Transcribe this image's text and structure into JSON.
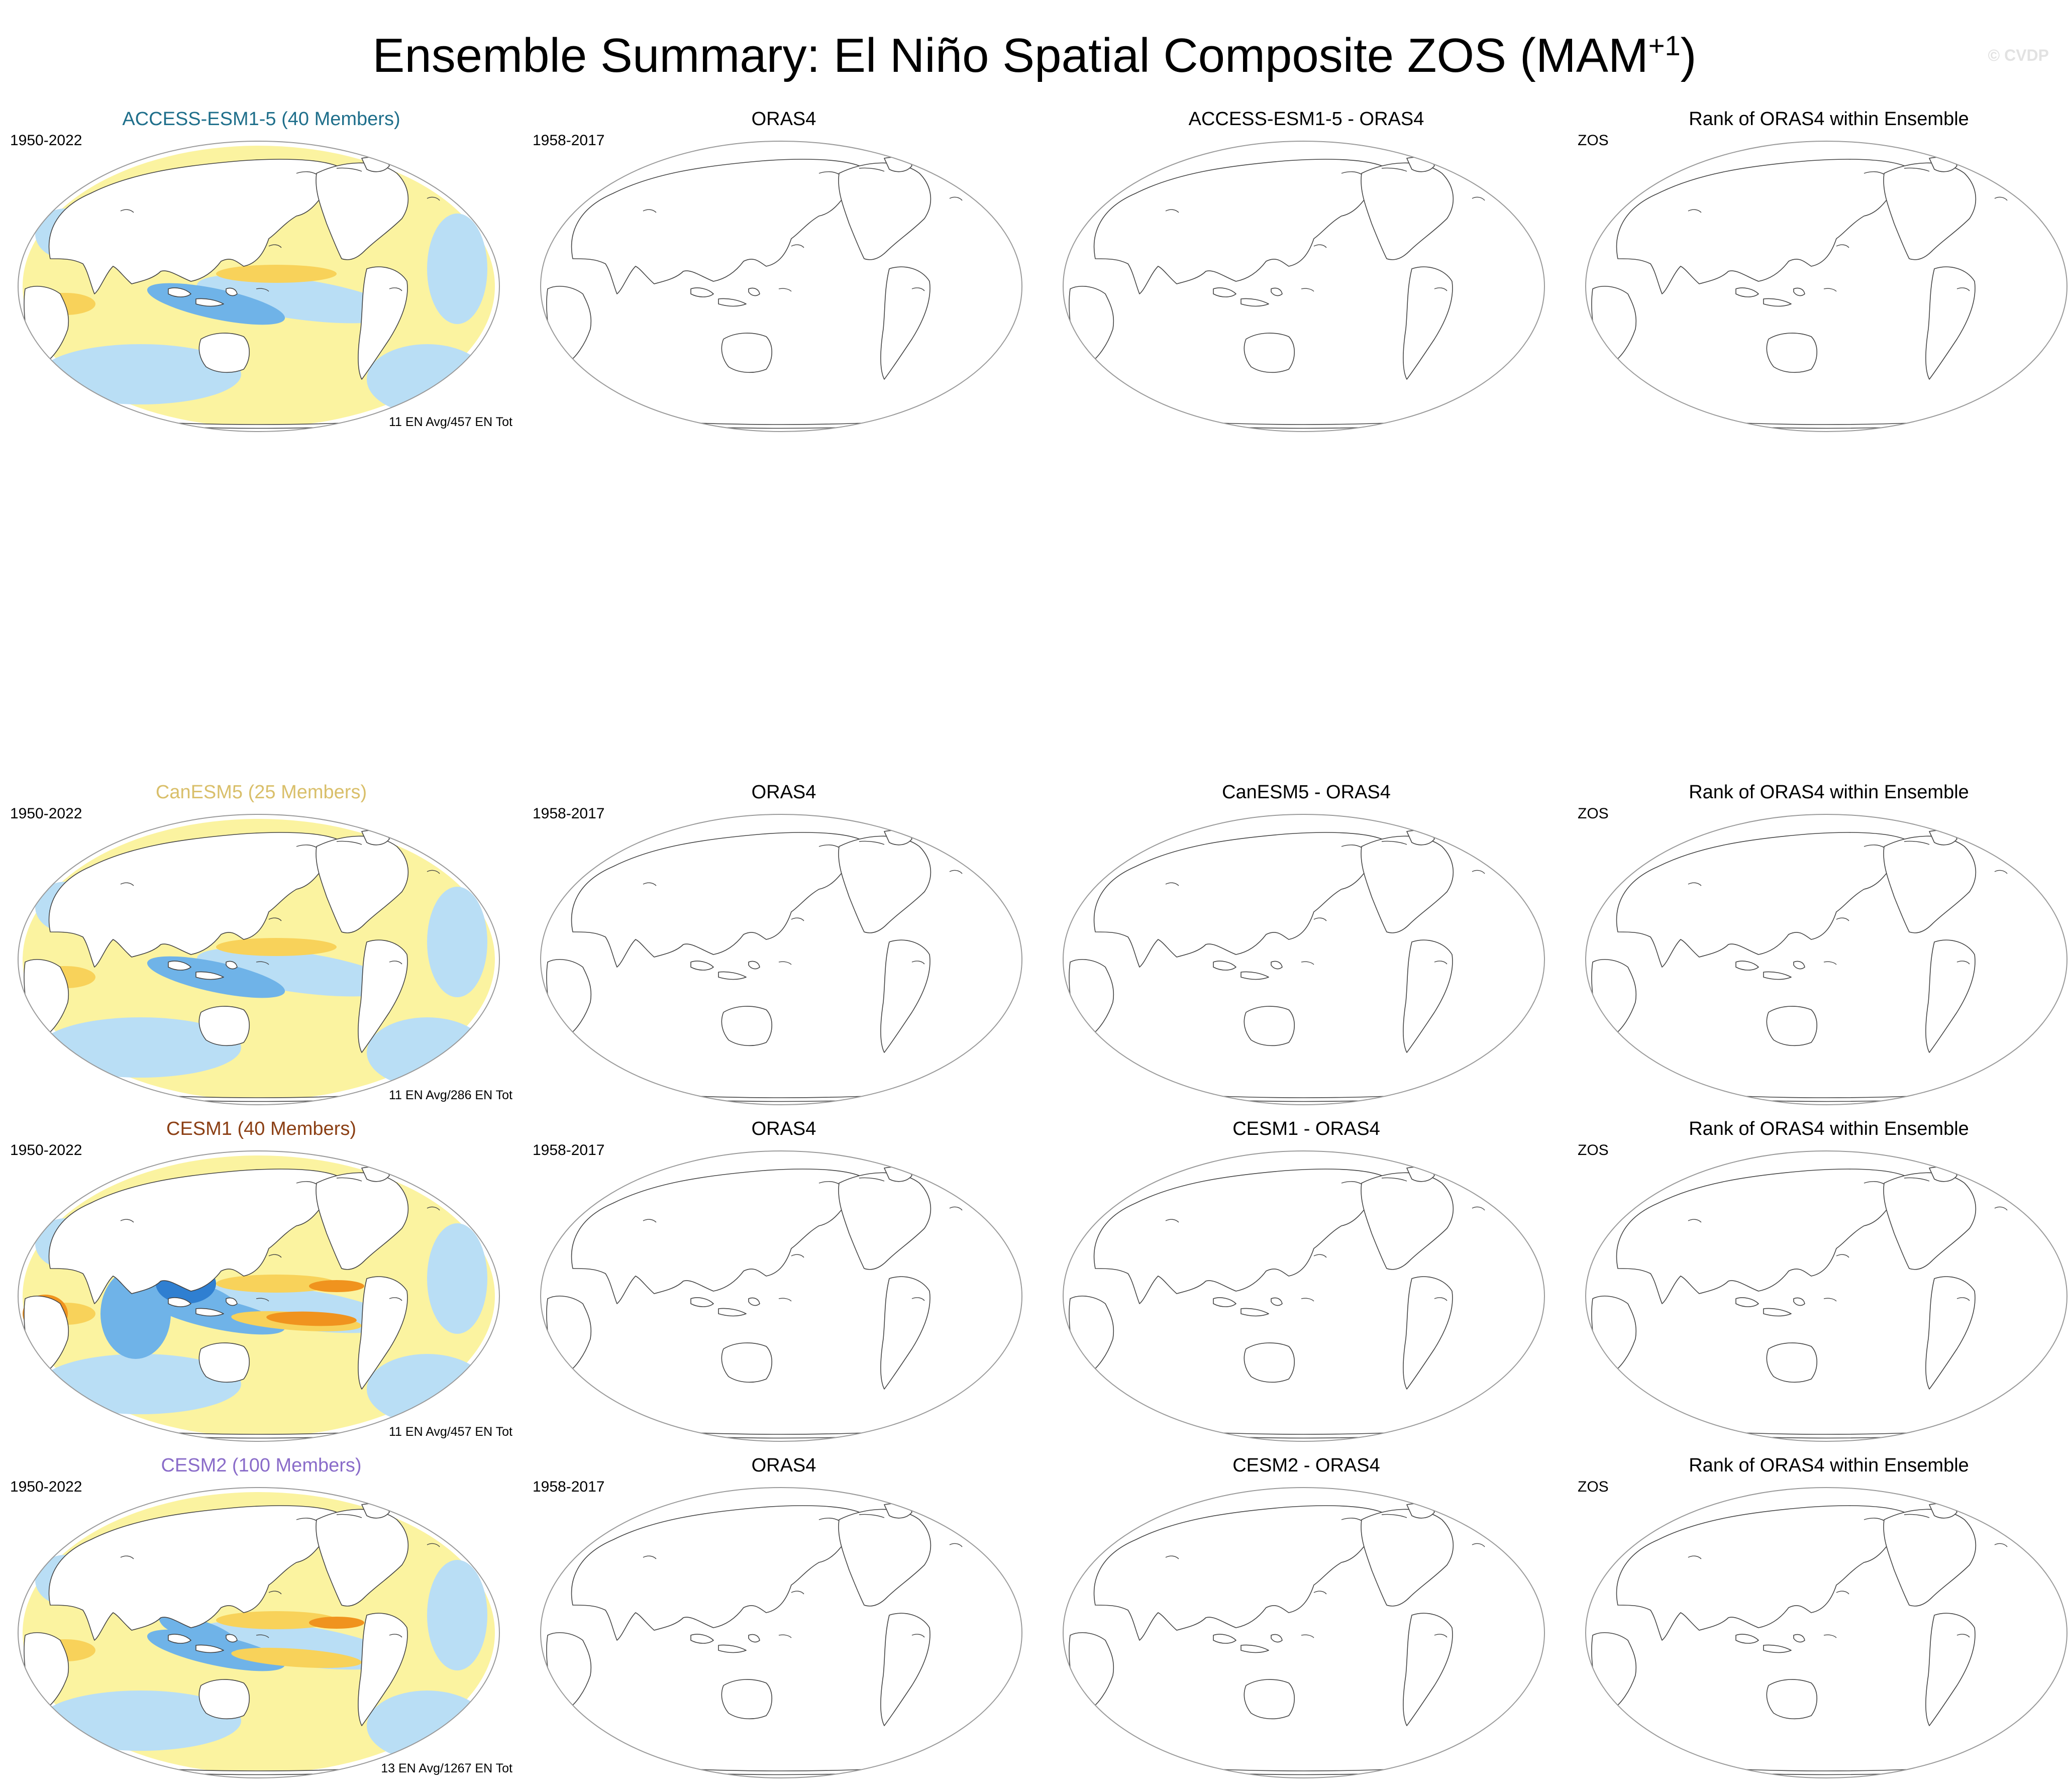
{
  "title": {
    "main": "Ensemble Summary: El Niño Spatial Composite ZOS (MAM",
    "superscript": "+1",
    "close": ")"
  },
  "watermark": "© CVDP",
  "colors": {
    "positive_weak": "#fbf3a0",
    "positive_mid": "#f8d25a",
    "positive_strong": "#f0931e",
    "positive_extreme": "#d7301f",
    "negative_weak": "#b9def5",
    "negative_mid": "#6fb3e8",
    "negative_strong": "#2f7fd1",
    "map_outline": "#9a9a9a",
    "coast": "#444444",
    "land_fill": "#ffffff"
  },
  "rows": [
    {
      "model": {
        "title": "ACCESS-ESM1-5 (40 Members)",
        "title_color": "#1f6f8b",
        "period": "1950-2022",
        "note": "11 EN Avg/457 EN Tot",
        "intensity": 1
      },
      "obs": {
        "title": "ORAS4",
        "period": "1958-2017"
      },
      "diff": {
        "title": "ACCESS-ESM1-5 - ORAS4",
        "corner": ""
      },
      "rank": {
        "title": "Rank of ORAS4 within Ensemble",
        "corner": "ZOS"
      }
    },
    {
      "model": {
        "title": "CanESM5 (25 Members)",
        "title_color": "#d9bf6a",
        "period": "1950-2022",
        "note": "11 EN Avg/286 EN Tot",
        "intensity": 1
      },
      "obs": {
        "title": "ORAS4",
        "period": "1958-2017"
      },
      "diff": {
        "title": "CanESM5 - ORAS4",
        "corner": ""
      },
      "rank": {
        "title": "Rank of ORAS4 within Ensemble",
        "corner": "ZOS"
      }
    },
    {
      "model": {
        "title": "CESM1 (40 Members)",
        "title_color": "#8b3f14",
        "period": "1950-2022",
        "note": "11 EN Avg/457 EN Tot",
        "intensity": 3
      },
      "obs": {
        "title": "ORAS4",
        "period": "1958-2017"
      },
      "diff": {
        "title": "CESM1 - ORAS4",
        "corner": ""
      },
      "rank": {
        "title": "Rank of ORAS4 within Ensemble",
        "corner": "ZOS"
      }
    },
    {
      "model": {
        "title": "CESM2 (100 Members)",
        "title_color": "#8a6cc9",
        "period": "1950-2022",
        "note": "13 EN Avg/1267 EN Tot",
        "intensity": 2
      },
      "obs": {
        "title": "ORAS4",
        "period": "1958-2017"
      },
      "diff": {
        "title": "CESM2 - ORAS4",
        "corner": ""
      },
      "rank": {
        "title": "Rank of ORAS4 within Ensemble",
        "corner": "ZOS"
      }
    }
  ]
}
